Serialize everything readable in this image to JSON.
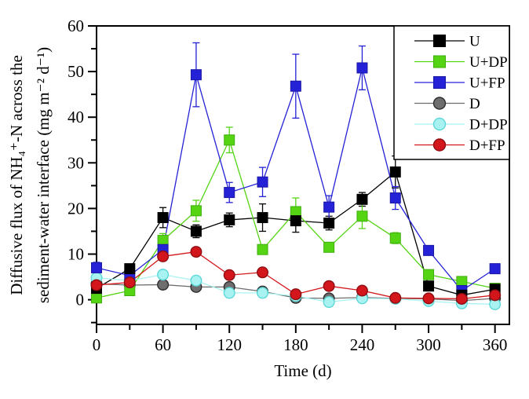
{
  "figure": {
    "background": "#ffffff",
    "frame_color": "#000000"
  },
  "chart_data": {
    "type": "line",
    "title": "",
    "xlabel": "Time (d)",
    "ylabel_line1": "Diffusive flux of NH₄⁺-N across the",
    "ylabel_line2": "sediment-water interface (mg m⁻² d⁻¹)",
    "xlim": [
      0,
      373
    ],
    "ylim": [
      -5.4,
      60
    ],
    "grid": false,
    "legend_position": "top-right",
    "xticks": {
      "major": [
        0,
        60,
        120,
        180,
        240,
        300,
        360
      ],
      "minor": [
        30,
        90,
        150,
        210,
        270,
        330
      ]
    },
    "yticks": {
      "major": [
        0,
        10,
        20,
        30,
        40,
        50,
        60
      ],
      "minor": [
        -5,
        5,
        15,
        25,
        35,
        45,
        55
      ]
    },
    "x": [
      0,
      30,
      60,
      90,
      120,
      150,
      180,
      210,
      240,
      270,
      300,
      330,
      360
    ],
    "series": [
      {
        "name": "U",
        "marker": "square",
        "color": "#000000",
        "edge": "#000000",
        "values": [
          2.5,
          6.8,
          18.0,
          15.0,
          17.5,
          18.0,
          17.3,
          16.8,
          22.0,
          28.0,
          3.0,
          1.0,
          2.3
        ],
        "err": [
          0.5,
          0.8,
          2.2,
          1.4,
          1.5,
          3.0,
          2.5,
          1.5,
          1.5,
          3.5,
          0.8,
          0.4,
          0.4
        ]
      },
      {
        "name": "U+DP",
        "marker": "square",
        "color": "#55d414",
        "edge": "#3fae0c",
        "values": [
          0.4,
          2.0,
          13.0,
          19.5,
          35.0,
          11.0,
          19.3,
          11.5,
          18.3,
          13.5,
          5.5,
          4.0,
          2.5
        ],
        "err": [
          0.6,
          0.5,
          1.5,
          2.3,
          2.8,
          1.0,
          3.0,
          1.0,
          2.7,
          1.2,
          0.7,
          0.4,
          0.4
        ]
      },
      {
        "name": "U+FP",
        "marker": "square",
        "color": "#2421d6",
        "edge": "#1b18a6",
        "values": [
          7.0,
          5.3,
          11.0,
          49.3,
          23.5,
          25.8,
          46.8,
          20.3,
          50.8,
          22.3,
          10.8,
          2.0,
          6.8
        ],
        "err": [
          1.2,
          0.8,
          1.0,
          7.0,
          2.2,
          3.2,
          7.0,
          2.5,
          4.8,
          2.5,
          1.0,
          0.5,
          0.8
        ]
      },
      {
        "name": "D",
        "marker": "circle",
        "color": "#6e6e6e",
        "edge": "#2e2e2e",
        "values": [
          3.5,
          3.2,
          3.3,
          2.8,
          2.8,
          1.8,
          0.4,
          0.3,
          0.5,
          0.3,
          0.2,
          -0.2,
          0.3
        ],
        "err": [
          0.4,
          0.4,
          0.5,
          0.5,
          0.4,
          0.4,
          0.3,
          0.3,
          0.3,
          0.3,
          0.3,
          0.3,
          0.3
        ]
      },
      {
        "name": "D+DP",
        "marker": "circle",
        "color": "#a8f3f1",
        "edge": "#5cd8d6",
        "values": [
          4.8,
          4.2,
          5.5,
          4.2,
          1.5,
          1.5,
          0.8,
          -0.5,
          0.3,
          0.2,
          -0.3,
          -0.8,
          -1.0
        ],
        "err": [
          0.6,
          0.5,
          0.6,
          0.6,
          0.5,
          0.9,
          0.5,
          0.6,
          0.5,
          0.4,
          0.5,
          0.6,
          0.5
        ]
      },
      {
        "name": "D+FP",
        "marker": "circle",
        "color": "#d3161c",
        "edge": "#8f0d12",
        "values": [
          3.2,
          3.8,
          9.5,
          10.5,
          5.4,
          6.0,
          1.2,
          3.0,
          2.0,
          0.4,
          0.3,
          0.2,
          1.0
        ],
        "err": [
          0.5,
          0.5,
          1.0,
          1.0,
          0.7,
          0.8,
          0.4,
          0.6,
          0.5,
          0.4,
          0.4,
          0.4,
          0.5
        ]
      }
    ]
  }
}
